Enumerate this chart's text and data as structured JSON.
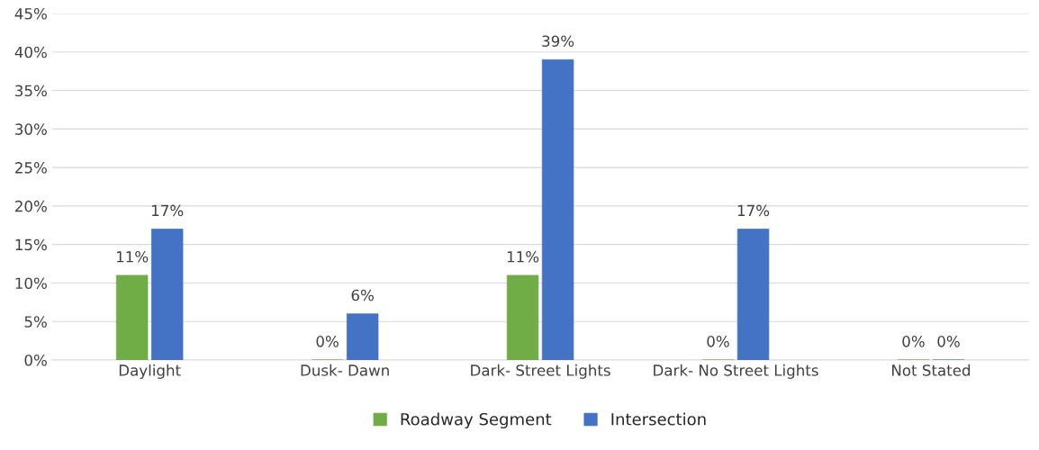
{
  "chart_data": {
    "type": "bar",
    "categories": [
      "Daylight",
      "Dusk- Dawn",
      "Dark- Street Lights",
      "Dark- No Street Lights",
      "Not Stated"
    ],
    "series": [
      {
        "name": "Roadway Segment",
        "color": "#70ad47",
        "values": [
          11,
          0,
          11,
          0,
          0
        ],
        "value_labels": [
          "11%",
          "0%",
          "11%",
          "0%",
          "0%"
        ]
      },
      {
        "name": "Intersection",
        "color": "#4472c4",
        "values": [
          17,
          6,
          39,
          17,
          0
        ],
        "value_labels": [
          "17%",
          "6%",
          "39%",
          "17%",
          "0%"
        ]
      }
    ],
    "ylim": [
      0,
      45
    ],
    "yticks": [
      {
        "value": 0,
        "label": "0%"
      },
      {
        "value": 5,
        "label": "5%"
      },
      {
        "value": 10,
        "label": "10%"
      },
      {
        "value": 15,
        "label": "15%"
      },
      {
        "value": 20,
        "label": "20%"
      },
      {
        "value": 25,
        "label": "25%"
      },
      {
        "value": 30,
        "label": "30%"
      },
      {
        "value": 35,
        "label": "35%"
      },
      {
        "value": 40,
        "label": "40%"
      },
      {
        "value": 45,
        "label": "45%"
      }
    ],
    "grid": "y",
    "legend": "bottom"
  }
}
